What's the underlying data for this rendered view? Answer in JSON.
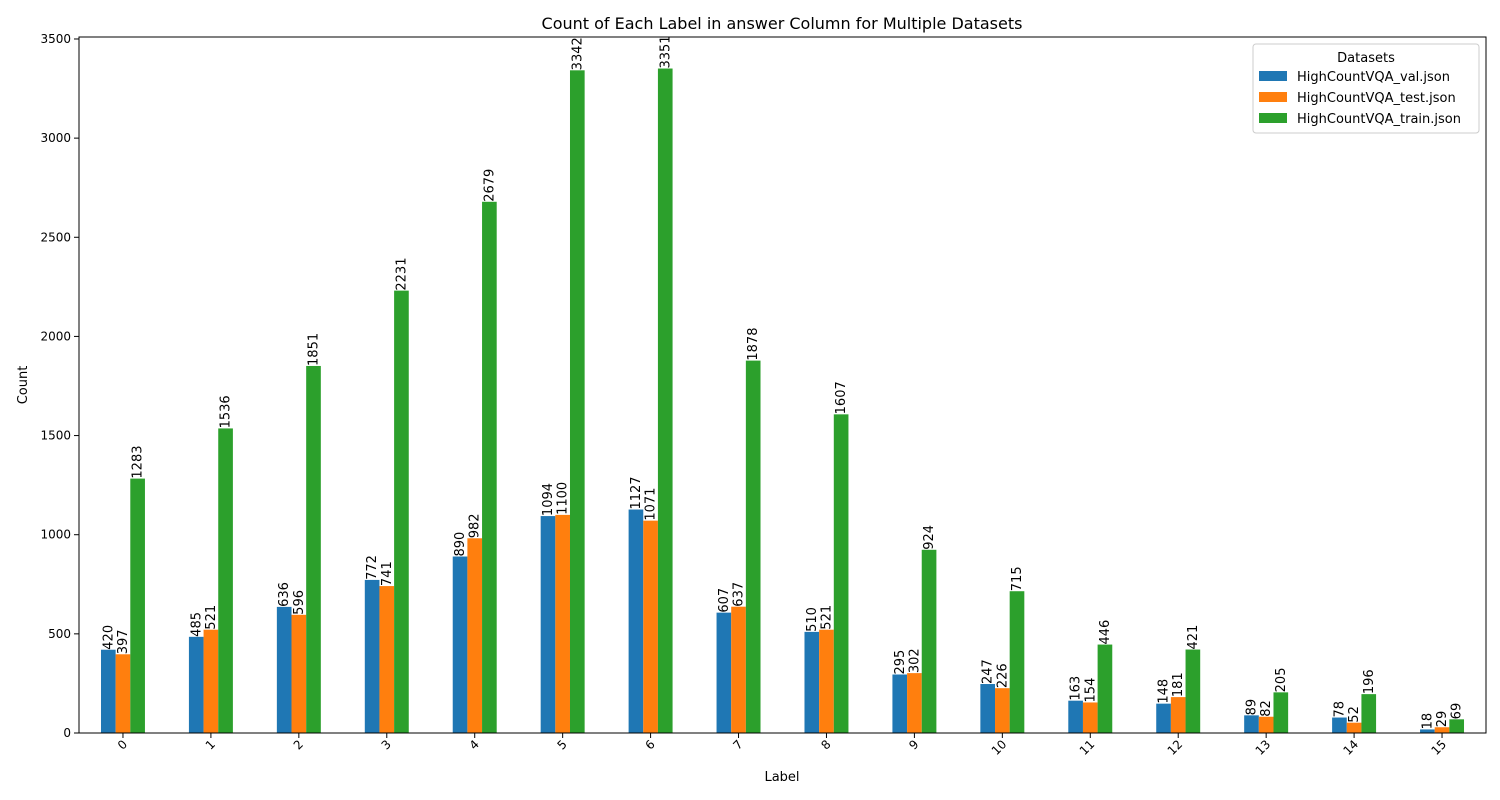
{
  "chart_data": {
    "type": "bar",
    "title": "Count of Each Label in answer Column for Multiple Datasets",
    "xlabel": "Label",
    "ylabel": "Count",
    "categories": [
      "0",
      "1",
      "2",
      "3",
      "4",
      "5",
      "6",
      "7",
      "8",
      "9",
      "10",
      "11",
      "12",
      "13",
      "14",
      "15"
    ],
    "series": [
      {
        "name": "HighCountVQA_val.json",
        "color": "#1f77b4",
        "values": [
          420,
          485,
          636,
          772,
          890,
          1094,
          1127,
          607,
          510,
          295,
          247,
          163,
          148,
          89,
          78,
          18
        ]
      },
      {
        "name": "HighCountVQA_test.json",
        "color": "#ff7f0e",
        "values": [
          397,
          521,
          596,
          741,
          982,
          1100,
          1071,
          637,
          521,
          302,
          226,
          154,
          181,
          82,
          52,
          29
        ]
      },
      {
        "name": "HighCountVQA_train.json",
        "color": "#2ca02c",
        "values": [
          1283,
          1536,
          1851,
          2231,
          2679,
          3342,
          3351,
          1878,
          1607,
          924,
          715,
          446,
          421,
          205,
          196,
          69
        ]
      }
    ],
    "ylim": [
      0,
      3510
    ],
    "yticks": [
      0,
      500,
      1000,
      1500,
      2000,
      2500,
      3000,
      3500
    ],
    "grid": false,
    "legend": {
      "title": "Datasets",
      "placement": "top-right"
    },
    "x_tick_rotation": 45,
    "bar_label_rotation": 90
  }
}
